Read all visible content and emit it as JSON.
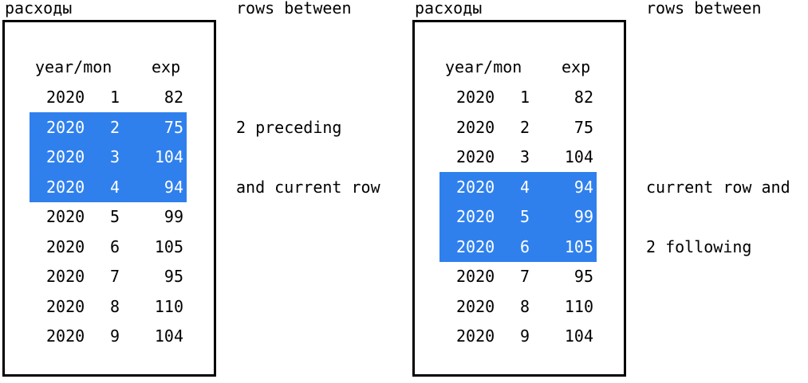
{
  "left": {
    "title": "расходы",
    "headers": {
      "yearmon": "year/mon",
      "exp": "exp"
    },
    "rows": [
      {
        "year": "2020",
        "mon": "1",
        "exp": "82",
        "highlighted": false
      },
      {
        "year": "2020",
        "mon": "2",
        "exp": "75",
        "highlighted": true
      },
      {
        "year": "2020",
        "mon": "3",
        "exp": "104",
        "highlighted": true
      },
      {
        "year": "2020",
        "mon": "4",
        "exp": "94",
        "highlighted": true
      },
      {
        "year": "2020",
        "mon": "5",
        "exp": "99",
        "highlighted": false
      },
      {
        "year": "2020",
        "mon": "6",
        "exp": "105",
        "highlighted": false
      },
      {
        "year": "2020",
        "mon": "7",
        "exp": "95",
        "highlighted": false
      },
      {
        "year": "2020",
        "mon": "8",
        "exp": "110",
        "highlighted": false
      },
      {
        "year": "2020",
        "mon": "9",
        "exp": "104",
        "highlighted": false
      }
    ],
    "notes": [
      {
        "text": "rows between",
        "row": -2
      },
      {
        "text": "2 preceding",
        "row": 1
      },
      {
        "text": "and current row",
        "row": 3
      }
    ]
  },
  "right": {
    "title": "расходы",
    "headers": {
      "yearmon": "year/mon",
      "exp": "exp"
    },
    "rows": [
      {
        "year": "2020",
        "mon": "1",
        "exp": "82",
        "highlighted": false
      },
      {
        "year": "2020",
        "mon": "2",
        "exp": "75",
        "highlighted": false
      },
      {
        "year": "2020",
        "mon": "3",
        "exp": "104",
        "highlighted": false
      },
      {
        "year": "2020",
        "mon": "4",
        "exp": "94",
        "highlighted": true
      },
      {
        "year": "2020",
        "mon": "5",
        "exp": "99",
        "highlighted": true
      },
      {
        "year": "2020",
        "mon": "6",
        "exp": "105",
        "highlighted": true
      },
      {
        "year": "2020",
        "mon": "7",
        "exp": "95",
        "highlighted": false
      },
      {
        "year": "2020",
        "mon": "8",
        "exp": "110",
        "highlighted": false
      },
      {
        "year": "2020",
        "mon": "9",
        "exp": "104",
        "highlighted": false
      }
    ],
    "notes": [
      {
        "text": "rows between",
        "row": -2
      },
      {
        "text": "current row and",
        "row": 3
      },
      {
        "text": "2 following",
        "row": 5
      }
    ]
  },
  "colors": {
    "highlight": "#2f80ed",
    "highlight_text": "#ffffff",
    "border": "#000000"
  }
}
